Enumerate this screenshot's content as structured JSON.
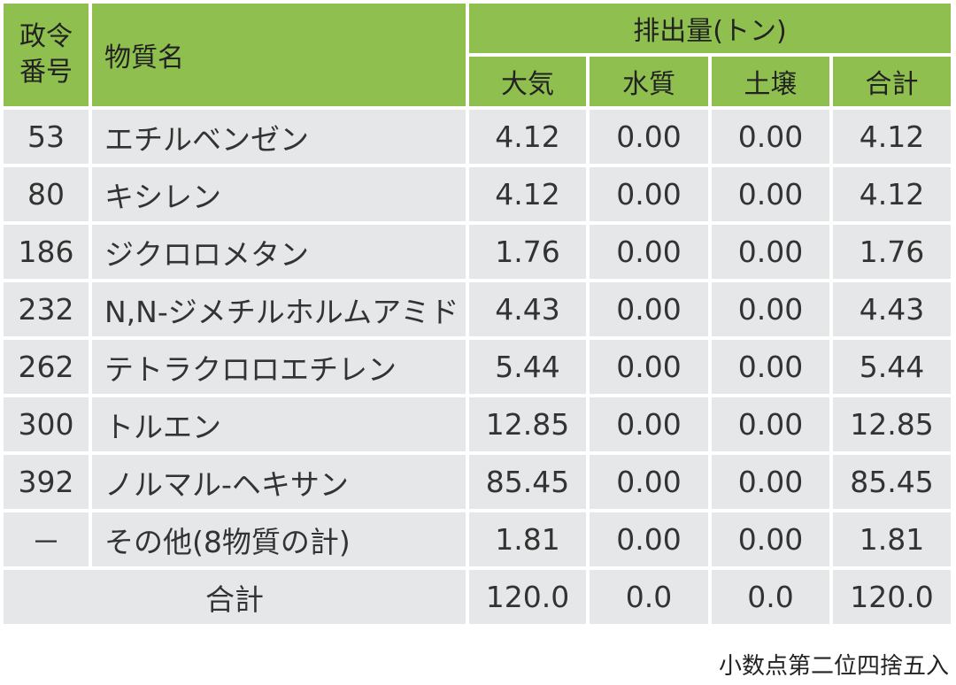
{
  "header": {
    "code_line1": "政令",
    "code_line2": "番号",
    "substance_name": "物質名",
    "emission_group": "排出量(トン)",
    "columns": [
      "大気",
      "水質",
      "土壌",
      "合計"
    ]
  },
  "rows": [
    {
      "code": "53",
      "name": "エチルベンゼン",
      "air": "4.12",
      "water": "0.00",
      "soil": "0.00",
      "total": "4.12"
    },
    {
      "code": "80",
      "name": "キシレン",
      "air": "4.12",
      "water": "0.00",
      "soil": "0.00",
      "total": "4.12"
    },
    {
      "code": "186",
      "name": "ジクロロメタン",
      "air": "1.76",
      "water": "0.00",
      "soil": "0.00",
      "total": "1.76"
    },
    {
      "code": "232",
      "name": "N,N-ジメチルホルムアミド",
      "air": "4.43",
      "water": "0.00",
      "soil": "0.00",
      "total": "4.43"
    },
    {
      "code": "262",
      "name": "テトラクロロエチレン",
      "air": "5.44",
      "water": "0.00",
      "soil": "0.00",
      "total": "5.44"
    },
    {
      "code": "300",
      "name": "トルエン",
      "air": "12.85",
      "water": "0.00",
      "soil": "0.00",
      "total": "12.85"
    },
    {
      "code": "392",
      "name": "ノルマル-ヘキサン",
      "air": "85.45",
      "water": "0.00",
      "soil": "0.00",
      "total": "85.45"
    },
    {
      "code": "－",
      "name": "その他(8物質の計)",
      "air": "1.81",
      "water": "0.00",
      "soil": "0.00",
      "total": "1.81"
    }
  ],
  "totals": {
    "label": "合計",
    "air": "120.0",
    "water": "0.0",
    "soil": "0.0",
    "total": "120.0"
  },
  "note": "小数点第二位四捨五入",
  "colors": {
    "header_green": "#8fbf4e",
    "cell_gray": "#e6e7e8"
  }
}
